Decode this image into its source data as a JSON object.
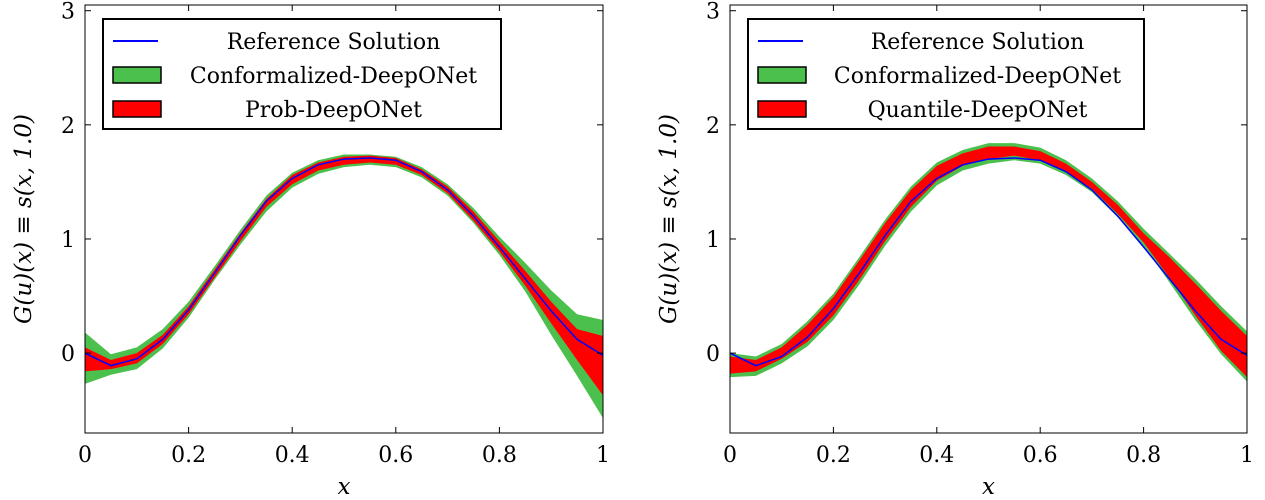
{
  "chart_data": [
    {
      "type": "area",
      "xlabel": "x",
      "ylabel": "G(u)(x) ≡ s(x, 1.0)",
      "xlim": [
        0,
        1
      ],
      "ylim": [
        -0.7,
        3.05
      ],
      "xticks": [
        0,
        0.2,
        0.4,
        0.6,
        0.8,
        1
      ],
      "xtick_labels": [
        "0",
        "0.2",
        "0.4",
        "0.6",
        "0.8",
        "1"
      ],
      "yticks": [
        0,
        1,
        2,
        3
      ],
      "ytick_labels": [
        "0",
        "1",
        "2",
        "3"
      ],
      "legend_position": "top-left",
      "grid": false,
      "x": [
        0,
        0.05,
        0.1,
        0.15,
        0.2,
        0.25,
        0.3,
        0.35,
        0.4,
        0.45,
        0.5,
        0.55,
        0.6,
        0.65,
        0.7,
        0.75,
        0.8,
        0.85,
        0.9,
        0.95,
        1
      ],
      "series": [
        {
          "name": "Reference Solution",
          "kind": "line",
          "color": "#0000ff",
          "values": [
            0.0,
            -0.11,
            -0.05,
            0.12,
            0.38,
            0.7,
            1.03,
            1.33,
            1.53,
            1.65,
            1.7,
            1.71,
            1.69,
            1.59,
            1.43,
            1.2,
            0.93,
            0.65,
            0.37,
            0.12,
            -0.02
          ]
        },
        {
          "name": "Conformalized-DeepONet",
          "kind": "band",
          "color": "#4cc04c",
          "lower": [
            -0.27,
            -0.19,
            -0.14,
            0.04,
            0.31,
            0.64,
            0.95,
            1.24,
            1.45,
            1.57,
            1.63,
            1.65,
            1.63,
            1.54,
            1.38,
            1.14,
            0.86,
            0.54,
            0.16,
            -0.2,
            -0.57
          ],
          "upper": [
            0.18,
            -0.01,
            0.05,
            0.21,
            0.45,
            0.76,
            1.08,
            1.38,
            1.58,
            1.69,
            1.74,
            1.74,
            1.72,
            1.63,
            1.48,
            1.27,
            1.02,
            0.79,
            0.55,
            0.34,
            0.29
          ]
        },
        {
          "name": "Prob-DeepONet",
          "kind": "band",
          "color": "#ff0000",
          "lower": [
            -0.16,
            -0.14,
            -0.09,
            0.08,
            0.34,
            0.66,
            0.98,
            1.28,
            1.48,
            1.6,
            1.65,
            1.67,
            1.65,
            1.56,
            1.4,
            1.16,
            0.89,
            0.59,
            0.26,
            -0.06,
            -0.37
          ],
          "upper": [
            0.05,
            -0.06,
            0.0,
            0.16,
            0.41,
            0.73,
            1.05,
            1.35,
            1.56,
            1.67,
            1.72,
            1.73,
            1.71,
            1.61,
            1.46,
            1.24,
            0.98,
            0.72,
            0.45,
            0.21,
            0.15
          ]
        }
      ]
    },
    {
      "type": "area",
      "xlabel": "x",
      "ylabel": "G(u)(x) ≡ s(x, 1.0)",
      "xlim": [
        0,
        1
      ],
      "ylim": [
        -0.7,
        3.05
      ],
      "xticks": [
        0,
        0.2,
        0.4,
        0.6,
        0.8,
        1
      ],
      "xtick_labels": [
        "0",
        "0.2",
        "0.4",
        "0.6",
        "0.8",
        "1"
      ],
      "yticks": [
        0,
        1,
        2,
        3
      ],
      "ytick_labels": [
        "0",
        "1",
        "2",
        "3"
      ],
      "legend_position": "top-left",
      "grid": false,
      "x": [
        0,
        0.05,
        0.1,
        0.15,
        0.2,
        0.25,
        0.3,
        0.35,
        0.4,
        0.45,
        0.5,
        0.55,
        0.6,
        0.65,
        0.7,
        0.75,
        0.8,
        0.85,
        0.9,
        0.95,
        1
      ],
      "series": [
        {
          "name": "Reference Solution",
          "kind": "line",
          "color": "#0000ff",
          "values": [
            0.0,
            -0.11,
            -0.03,
            0.14,
            0.39,
            0.7,
            1.03,
            1.33,
            1.53,
            1.65,
            1.7,
            1.71,
            1.69,
            1.59,
            1.43,
            1.2,
            0.93,
            0.65,
            0.37,
            0.12,
            -0.02
          ]
        },
        {
          "name": "Conformalized-DeepONet",
          "kind": "band",
          "color": "#4cc04c",
          "lower": [
            -0.21,
            -0.2,
            -0.09,
            0.06,
            0.29,
            0.6,
            0.94,
            1.24,
            1.47,
            1.6,
            1.66,
            1.69,
            1.66,
            1.56,
            1.41,
            1.19,
            0.94,
            0.62,
            0.29,
            -0.01,
            -0.25
          ],
          "upper": [
            0.0,
            -0.03,
            0.08,
            0.28,
            0.52,
            0.84,
            1.17,
            1.46,
            1.67,
            1.78,
            1.84,
            1.84,
            1.8,
            1.69,
            1.53,
            1.33,
            1.09,
            0.87,
            0.65,
            0.41,
            0.19
          ]
        },
        {
          "name": "Quantile-DeepONet",
          "kind": "band",
          "color": "#ff0000",
          "lower": [
            -0.18,
            -0.16,
            -0.05,
            0.1,
            0.33,
            0.64,
            0.98,
            1.28,
            1.51,
            1.64,
            1.7,
            1.73,
            1.69,
            1.59,
            1.44,
            1.22,
            0.97,
            0.66,
            0.33,
            0.02,
            -0.21
          ],
          "upper": [
            -0.03,
            -0.06,
            0.05,
            0.25,
            0.49,
            0.81,
            1.14,
            1.43,
            1.64,
            1.75,
            1.81,
            1.81,
            1.77,
            1.66,
            1.5,
            1.3,
            1.05,
            0.84,
            0.61,
            0.37,
            0.15
          ]
        }
      ]
    }
  ]
}
